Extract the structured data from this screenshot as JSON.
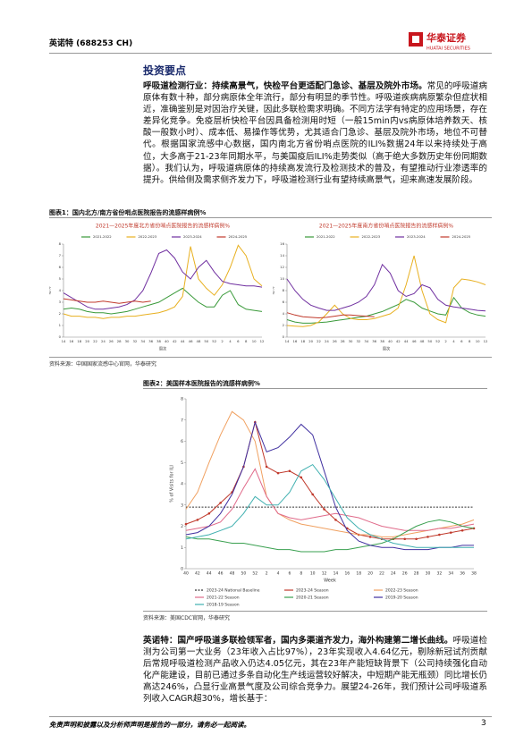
{
  "header": {
    "company": "英诺特 (688253 CH)",
    "logo_cn": "华泰证券",
    "logo_en": "HUATAI SECURITIES"
  },
  "section_title": "投资要点",
  "paragraphs": [
    {
      "lead": "呼吸道检测行业：持续高景气，快检平台更适配门急诊、基层及院外市场。",
      "text": "常见的呼吸道病原体有数十种，部分病原体全年流行，部分有明显的季节性。呼吸道疾病病原繁杂但症状相近，准确鉴别是对因治疗关键，因此多联检需求明确。不同方法学有特定的应用场景，存在差异化竞争。免疫层析快检平台因具备检测用时短（一般15min内vs病原体培养数天、核酸一般数小时）、成本低、易操作等优势，尤其适合门急诊、基层及院外市场，地位不可替代。根据国家流感中心数据，国内南北方省份哨点医院的ILI%数据24年以来持续处于高位，大多高于21-23年同期水平，与美国疫后ILI%走势类似（高于绝大多数历史年份同期数据）。我们认为，呼吸道病原体的持续高发流行及检测技术的普及，有望推动行业渗透率的提升。供给侧及需求侧齐发力下，呼吸道检测行业有望持续高景气，迎来高速发展阶段。"
    },
    {
      "lead": "英诺特：国产呼吸道多联检领军者，国内多渠道齐发力，海外构建第二增长曲线。",
      "text": "呼吸道检测为公司第一大业务（23年收入占比97%），23年实现收入4.64亿元，剔除新冠试剂贡献后常规呼吸道检测产品收入仍达4.05亿元，其在23年产能短缺背景下（公司持续强化自动化产能建设，目前已通过多条自动化生产线运营较好解决，中短期产能无瓶颈）同比增长仍高达246%，凸显行业高景气度及公司综合竞争力。展望24-26年，我们预计公司呼吸道系列收入CAGR超30%，增长基于："
    }
  ],
  "figures": [
    {
      "caption": "图表1：国内北方/南方省份哨点医院报告的流感样病例%",
      "source": "资料来源：中国国家流感中心官网，华泰研究",
      "charts": [
        {
          "type": "line",
          "title": "2021—2025年度北方省份哨点医院报告的流感样病例%",
          "y_label": "ILI%",
          "x_label": "周次",
          "categories": [
            "14",
            "16",
            "18",
            "20",
            "22",
            "24",
            "26",
            "28",
            "30",
            "32",
            "34",
            "36",
            "38",
            "40",
            "42",
            "44",
            "46",
            "48",
            "50",
            "52",
            "2",
            "4",
            "6",
            "8",
            "10",
            "12"
          ],
          "ylim": [
            0,
            8
          ],
          "yticks": [
            0,
            1,
            2,
            3,
            4,
            5,
            6,
            7,
            8
          ],
          "grid": false,
          "series": [
            {
              "name": "2021-2022",
              "color": "#3a9a3a",
              "values": [
                2.4,
                2.5,
                2.4,
                2.2,
                2.1,
                2.1,
                2.0,
                2.1,
                2.2,
                2.4,
                2.6,
                2.8,
                3.0,
                3.4,
                3.8,
                4.2,
                3.6,
                3.0,
                2.6,
                2.6,
                3.6,
                4.0,
                2.8,
                2.4,
                2.3,
                2.2
              ]
            },
            {
              "name": "2022-2023",
              "color": "#e8b020",
              "values": [
                2.0,
                1.8,
                1.8,
                1.7,
                1.7,
                1.6,
                1.7,
                1.7,
                1.8,
                1.8,
                1.9,
                2.0,
                2.1,
                2.3,
                2.6,
                3.5,
                7.8,
                5.0,
                4.2,
                3.6,
                4.5,
                6.0,
                7.9,
                7.0,
                5.0,
                4.4
              ]
            },
            {
              "name": "2023-2024",
              "color": "#7030a0",
              "values": [
                3.8,
                3.4,
                3.0,
                2.6,
                2.4,
                2.4,
                2.5,
                2.6,
                2.8,
                3.2,
                4.0,
                5.5,
                7.2,
                7.5,
                6.8,
                5.6,
                5.0,
                6.0,
                6.6,
                5.6,
                4.8,
                4.6,
                4.5,
                4.4,
                4.4,
                4.3
              ]
            },
            {
              "name": "2024-2025",
              "color": "#c0392b",
              "values": [
                3.3,
                3.2,
                3.1,
                3.0,
                3.0,
                3.1,
                3.0,
                2.9,
                3.0,
                3.1,
                3.0,
                3.1,
                null,
                null,
                null,
                null,
                null,
                null,
                null,
                null,
                null,
                null,
                null,
                null,
                null,
                null
              ]
            }
          ]
        },
        {
          "type": "line",
          "title": "2021—2025年度南方省份哨点医院报告的流感样病例%",
          "y_label": "ILI%",
          "x_label": "周次",
          "categories": [
            "14",
            "16",
            "18",
            "20",
            "22",
            "24",
            "26",
            "28",
            "30",
            "32",
            "34",
            "36",
            "38",
            "40",
            "42",
            "44",
            "46",
            "48",
            "50",
            "52",
            "2",
            "4",
            "6",
            "8",
            "10",
            "12"
          ],
          "ylim": [
            0,
            16
          ],
          "yticks": [
            0,
            2,
            4,
            6,
            8,
            10,
            12,
            14,
            16
          ],
          "grid": false,
          "series": [
            {
              "name": "2021-2022",
              "color": "#3a9a3a",
              "values": [
                3.0,
                2.6,
                2.4,
                2.4,
                2.5,
                2.6,
                2.8,
                3.0,
                3.2,
                3.4,
                3.6,
                4.0,
                4.4,
                5.0,
                5.6,
                6.5,
                6.0,
                5.0,
                4.5,
                4.0,
                3.8,
                6.8,
                5.0,
                4.2,
                3.8,
                3.6
              ]
            },
            {
              "name": "2022-2023",
              "color": "#e8b020",
              "values": [
                2.0,
                1.9,
                1.8,
                2.0,
                2.6,
                4.0,
                5.5,
                4.0,
                3.2,
                3.0,
                3.0,
                3.2,
                3.6,
                4.0,
                5.0,
                9.0,
                14.0,
                8.0,
                4.0,
                3.0,
                2.5,
                8.5,
                10.0,
                9.8,
                9.5,
                9.0
              ]
            },
            {
              "name": "2023-2024",
              "color": "#7030a0",
              "values": [
                10.0,
                8.0,
                6.5,
                5.5,
                5.0,
                4.6,
                4.6,
                5.0,
                5.4,
                6.0,
                7.0,
                9.0,
                12.5,
                11.0,
                8.0,
                7.0,
                7.5,
                9.0,
                8.5,
                6.5,
                5.5,
                5.2,
                5.0,
                4.8,
                4.6,
                4.5
              ]
            },
            {
              "name": "2024-2025",
              "color": "#c0392b",
              "values": [
                4.2,
                3.8,
                3.5,
                3.4,
                3.3,
                3.4,
                3.6,
                3.8,
                3.8,
                3.7,
                3.6,
                3.5,
                null,
                null,
                null,
                null,
                null,
                null,
                null,
                null,
                null,
                null,
                null,
                null,
                null,
                null
              ]
            }
          ]
        }
      ]
    },
    {
      "caption": "图表2：美国样本医院报告的流感样病例%",
      "source": "资料来源：美国CDC官网，华泰研究",
      "charts": [
        {
          "type": "line",
          "y_label": "% of Visits for ILI",
          "x_label": "Week",
          "categories": [
            "40",
            "42",
            "44",
            "46",
            "48",
            "50",
            "52",
            "2",
            "4",
            "6",
            "8",
            "10",
            "12",
            "14",
            "16",
            "18",
            "20",
            "22",
            "24",
            "26",
            "28",
            "30",
            "32",
            "34",
            "36",
            "38"
          ],
          "ylim": [
            0,
            8
          ],
          "yticks": [
            0,
            1,
            2,
            3,
            4,
            5,
            6,
            7,
            8
          ],
          "grid": false,
          "series": [
            {
              "name": "2023-24 National Baseline",
              "color": "#333333",
              "dashed": true,
              "values": [
                2.9,
                2.9,
                2.9,
                2.9,
                2.9,
                2.9,
                2.9,
                2.9,
                2.9,
                2.9,
                2.9,
                2.9,
                2.9,
                2.9,
                2.9,
                2.9,
                2.9,
                2.9,
                2.9,
                2.9,
                2.9,
                2.9,
                2.9,
                2.9,
                2.9,
                2.9
              ]
            },
            {
              "name": "2023-24 Season",
              "color": "#c0392b",
              "markers": true,
              "values": [
                2.1,
                2.3,
                2.6,
                3.1,
                3.6,
                4.8,
                6.9,
                4.8,
                4.5,
                4.6,
                4.3,
                3.5,
                2.8,
                2.3,
                1.9,
                1.6,
                1.5,
                1.4,
                1.4,
                1.4,
                1.4,
                1.5,
                1.6,
                1.7,
                1.8,
                1.9
              ]
            },
            {
              "name": "2022-23 Season",
              "color": "#f0a060",
              "values": [
                2.8,
                3.6,
                5.0,
                6.3,
                7.4,
                7.0,
                6.0,
                3.4,
                2.6,
                2.3,
                2.1,
                2.0,
                1.9,
                1.8,
                1.7,
                1.6,
                1.6,
                1.5,
                1.5,
                1.6,
                1.7,
                1.8,
                1.9,
                2.0,
                2.1,
                2.3
              ]
            },
            {
              "name": "2021-22 Season",
              "color": "#e06a8a",
              "values": [
                1.8,
                1.9,
                2.0,
                2.2,
                2.8,
                3.8,
                4.7,
                3.4,
                2.6,
                2.4,
                2.3,
                2.4,
                2.5,
                2.6,
                2.5,
                2.4,
                2.2,
                2.0,
                1.9,
                1.8,
                1.8,
                1.8,
                1.9,
                1.9,
                2.0,
                2.1
              ]
            },
            {
              "name": "2020-21 Season",
              "color": "#3aa050",
              "values": [
                1.5,
                1.4,
                1.4,
                1.3,
                1.2,
                1.2,
                1.1,
                1.0,
                0.9,
                0.9,
                0.8,
                0.8,
                0.8,
                0.9,
                0.9,
                1.0,
                1.1,
                1.2,
                1.4,
                1.7,
                2.0,
                2.2,
                2.3,
                2.2,
                2.0,
                1.9
              ]
            },
            {
              "name": "2019-20 Season",
              "color": "#4030a0",
              "values": [
                1.6,
                1.7,
                2.0,
                2.6,
                3.5,
                4.8,
                6.9,
                5.5,
                5.7,
                6.2,
                6.8,
                6.3,
                4.6,
                2.9,
                1.8,
                1.3,
                1.1,
                1.0,
                1.0,
                0.9,
                0.9,
                0.9,
                1.0,
                1.0,
                1.1,
                1.1
              ]
            },
            {
              "name": "2018-19 Season",
              "color": "#40b0b0",
              "values": [
                1.4,
                1.5,
                1.6,
                1.8,
                2.0,
                2.6,
                3.4,
                3.0,
                3.0,
                3.6,
                4.6,
                4.9,
                4.2,
                3.3,
                2.4,
                1.9,
                1.6,
                1.4,
                1.2,
                1.1,
                1.0,
                1.0,
                1.0,
                1.0,
                1.0,
                1.0
              ]
            }
          ]
        }
      ]
    }
  ],
  "footer": {
    "disclaimer": "免责声明和披露以及分析师声明是报告的一部分，请务必一起阅读。",
    "page": "3"
  }
}
